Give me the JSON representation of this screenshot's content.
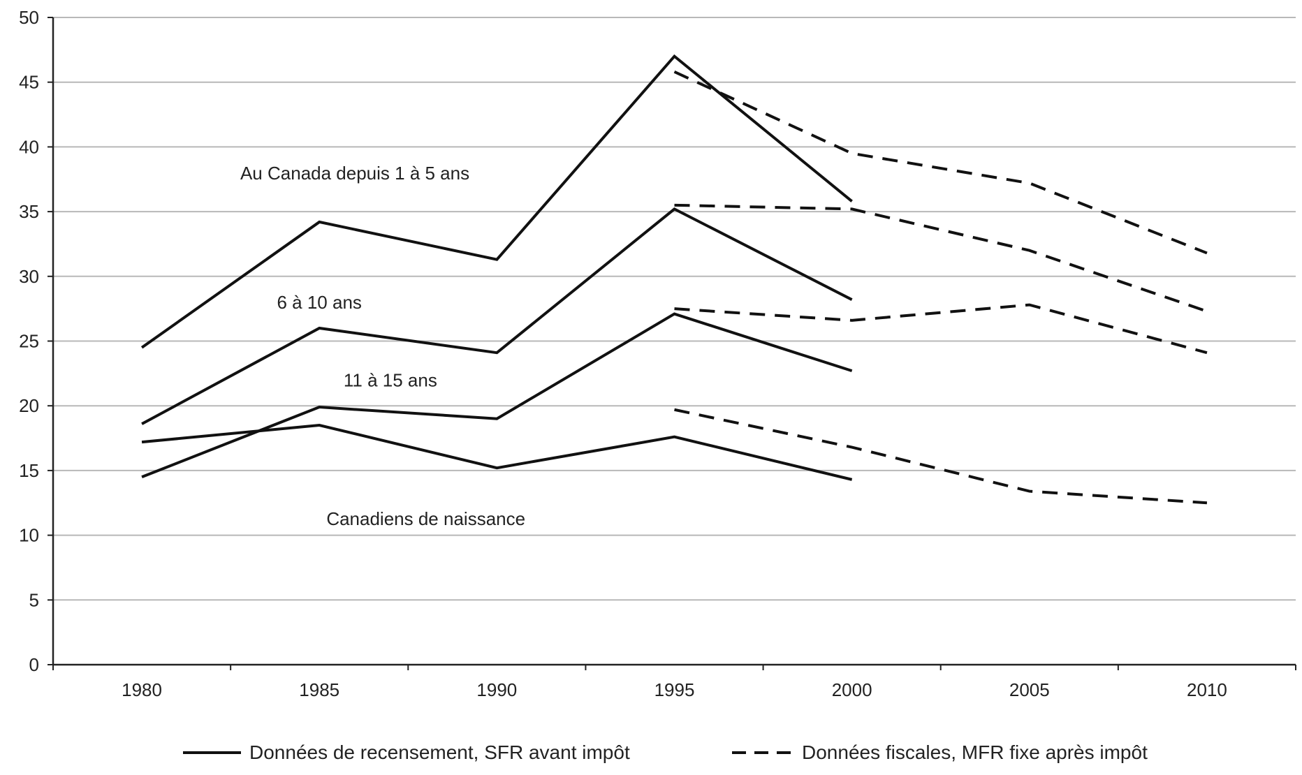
{
  "chart_data": {
    "type": "line",
    "x": [
      1980,
      1985,
      1990,
      1995,
      2000,
      2005,
      2010
    ],
    "ylim": [
      0,
      50
    ],
    "yticks": [
      0,
      5,
      10,
      15,
      20,
      25,
      30,
      35,
      40,
      45,
      50
    ],
    "xticks": [
      "1980",
      "1985",
      "1990",
      "1995",
      "2000",
      "2005",
      "2010"
    ],
    "grid": "horizontal",
    "legend_position": "bottom",
    "legend": [
      {
        "label": "Données de recensement, SFR avant impôt",
        "style": "solid"
      },
      {
        "label": "Données fiscales, MFR fixe après impôt",
        "style": "dashed"
      }
    ],
    "annotations": [
      {
        "text": "Au Canada depuis 1 à 5 ans",
        "x": 1986,
        "y": 37.5
      },
      {
        "text": "6 à 10 ans",
        "x": 1985,
        "y": 27.5
      },
      {
        "text": "11 à 15 ans",
        "x": 1987,
        "y": 21.5
      },
      {
        "text": "Canadiens de naissance",
        "x": 1988,
        "y": 10.8
      }
    ],
    "series": [
      {
        "group": "Au Canada depuis 1 à 5 ans",
        "style": "solid",
        "x": [
          1980,
          1985,
          1990,
          1995,
          2000
        ],
        "values": [
          24.5,
          34.2,
          31.3,
          47.0,
          35.8
        ]
      },
      {
        "group": "Au Canada depuis 1 à 5 ans",
        "style": "dashed",
        "x": [
          1995,
          2000,
          2005,
          2010
        ],
        "values": [
          45.8,
          39.5,
          37.2,
          31.8
        ]
      },
      {
        "group": "6 à 10 ans",
        "style": "solid",
        "x": [
          1980,
          1985,
          1990,
          1995,
          2000
        ],
        "values": [
          18.6,
          26.0,
          24.1,
          35.2,
          28.2
        ]
      },
      {
        "group": "6 à 10 ans",
        "style": "dashed",
        "x": [
          1995,
          2000,
          2005,
          2010
        ],
        "values": [
          35.5,
          35.2,
          32.0,
          27.3
        ]
      },
      {
        "group": "11 à 15 ans",
        "style": "solid",
        "x": [
          1980,
          1985,
          1990,
          1995,
          2000
        ],
        "values": [
          14.5,
          19.9,
          19.0,
          27.1,
          22.7
        ]
      },
      {
        "group": "11 à 15 ans",
        "style": "dashed",
        "x": [
          1995,
          2000,
          2005,
          2010
        ],
        "values": [
          27.5,
          26.6,
          27.8,
          24.1
        ]
      },
      {
        "group": "Canadiens de naissance",
        "style": "solid",
        "x": [
          1980,
          1985,
          1990,
          1995,
          2000
        ],
        "values": [
          17.2,
          18.5,
          15.2,
          17.6,
          14.3
        ]
      },
      {
        "group": "Canadiens de naissance",
        "style": "dashed",
        "x": [
          1995,
          2000,
          2005,
          2010
        ],
        "values": [
          19.7,
          16.8,
          13.4,
          12.5
        ]
      }
    ]
  }
}
